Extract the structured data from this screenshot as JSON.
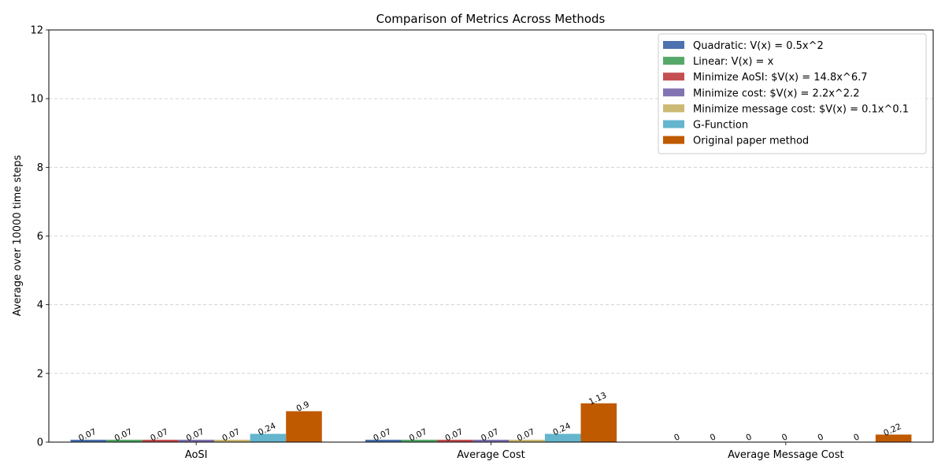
{
  "chart_data": {
    "type": "bar",
    "title": "Comparison of Metrics Across Methods",
    "xlabel": "",
    "ylabel": "Average over 10000 time steps",
    "categories": [
      "AoSI",
      "Average Cost",
      "Average Message Cost"
    ],
    "ylim": [
      0,
      12
    ],
    "yticks": [
      0,
      2,
      4,
      6,
      8,
      10,
      12
    ],
    "grid": "y-dashed",
    "legend_position": "top-right",
    "series": [
      {
        "name": "Quadratic: V(x) = 0.5x^2",
        "color": "#4c72b0",
        "values": [
          0.07,
          0.07,
          0
        ],
        "labels": [
          "0.07",
          "0.07",
          "0"
        ]
      },
      {
        "name": "Linear: V(x) = x",
        "color": "#55a868",
        "values": [
          0.07,
          0.07,
          0
        ],
        "labels": [
          "0.07",
          "0.07",
          "0"
        ]
      },
      {
        "name": "Minimize AoSI: $V(x) = 14.8x^6.7",
        "color": "#c44e52",
        "values": [
          0.07,
          0.07,
          0
        ],
        "labels": [
          "0.07",
          "0.07",
          "0"
        ]
      },
      {
        "name": "Minimize cost: $V(x) = 2.2x^2.2",
        "color": "#8172b2",
        "values": [
          0.07,
          0.07,
          0
        ],
        "labels": [
          "0.07",
          "0.07",
          "0"
        ]
      },
      {
        "name": "Minimize message cost: $V(x) = 0.1x^0.1",
        "color": "#ccb974",
        "values": [
          0.07,
          0.07,
          0
        ],
        "labels": [
          "0.07",
          "0.07",
          "0"
        ]
      },
      {
        "name": "G-Function",
        "color": "#64b5cd",
        "values": [
          0.24,
          0.24,
          0
        ],
        "labels": [
          "0.24",
          "0.24",
          "0"
        ]
      },
      {
        "name": "Original paper method",
        "color": "#c05a00",
        "values": [
          0.9,
          1.13,
          0.22
        ],
        "labels": [
          "0.9",
          "1.13",
          "0.22"
        ]
      }
    ]
  }
}
